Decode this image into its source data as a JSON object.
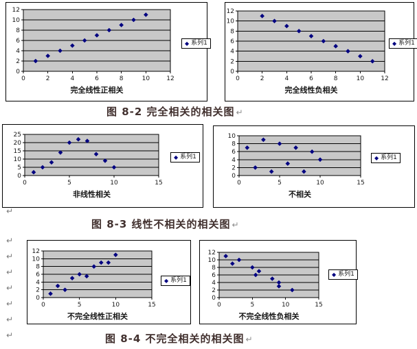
{
  "page": {
    "background": "#ffffff"
  },
  "colors": {
    "marker": "#000080",
    "plot_bg": "#c8c8c8",
    "grid": "#000000",
    "chart_frame": "#000000",
    "caption_text": "#41302e"
  },
  "icons": {
    "diamond_marker": "◆"
  },
  "paragraph_marks": {
    "glyph": "↵",
    "count": 8
  },
  "captions": [
    {
      "text": "图 8-2  完全相关的相关图",
      "mark": "↵"
    },
    {
      "text": "图 8-3  线性不相关的相关图",
      "mark": "↵"
    },
    {
      "text": "图 8-4  不完全相关的相关图",
      "mark": "↵"
    }
  ],
  "chart_data": [
    {
      "type": "scatter",
      "xlabel": "完全线性正相关",
      "legend": "系列1",
      "legend_position": "right",
      "grid": "horizontal",
      "x": [
        1,
        2,
        3,
        4,
        5,
        6,
        7,
        8,
        9,
        10
      ],
      "y": [
        2,
        3,
        4,
        5,
        6,
        7,
        8,
        9,
        10,
        11
      ],
      "xlim": [
        0,
        12
      ],
      "xticks": [
        0,
        2,
        4,
        6,
        8,
        10,
        12
      ],
      "ylim": [
        0,
        12
      ],
      "yticks": [
        0,
        2,
        4,
        6,
        8,
        10,
        12
      ]
    },
    {
      "type": "scatter",
      "xlabel": "完全线性负相关",
      "legend": "系列1",
      "legend_position": "right",
      "grid": "horizontal",
      "x": [
        2,
        3,
        4,
        5,
        6,
        7,
        8,
        9,
        10,
        11
      ],
      "y": [
        11,
        10,
        9,
        8,
        7,
        6,
        5,
        4,
        3,
        2
      ],
      "xlim": [
        0,
        12
      ],
      "xticks": [
        0,
        2,
        4,
        6,
        8,
        10,
        12
      ],
      "ylim": [
        0,
        12
      ],
      "yticks": [
        0,
        2,
        4,
        6,
        8,
        10,
        12
      ]
    },
    {
      "type": "scatter",
      "xlabel": "非线性相关",
      "legend": "系列1",
      "legend_position": "right",
      "grid": "horizontal",
      "x": [
        1,
        2,
        3,
        4,
        5,
        6,
        7,
        8,
        9,
        10
      ],
      "y": [
        2,
        5,
        8,
        14,
        20,
        22,
        21,
        13,
        9,
        5
      ],
      "xlim": [
        0,
        15
      ],
      "xticks": [
        0,
        5,
        10,
        15
      ],
      "ylim": [
        0,
        25
      ],
      "yticks": [
        0,
        5,
        10,
        15,
        20,
        25
      ]
    },
    {
      "type": "scatter",
      "xlabel": "不相关",
      "legend": "系列1",
      "legend_position": "right",
      "grid": "horizontal",
      "x": [
        1,
        2,
        3,
        4,
        5,
        6,
        7,
        8,
        9,
        10
      ],
      "y": [
        7,
        2,
        9,
        1,
        8,
        3,
        7,
        1,
        6,
        4
      ],
      "xlim": [
        0,
        15
      ],
      "xticks": [
        0,
        5,
        10,
        15
      ],
      "ylim": [
        0,
        10
      ],
      "yticks": [
        0,
        2,
        4,
        6,
        8,
        10
      ]
    },
    {
      "type": "scatter",
      "xlabel": "不完全线性正相关",
      "legend": "系列1",
      "legend_position": "right",
      "grid": "horizontal",
      "x": [
        1,
        2,
        3,
        4,
        5,
        6,
        7,
        8,
        9,
        10
      ],
      "y": [
        1,
        3,
        2,
        5,
        6,
        5.5,
        8,
        9,
        9,
        11
      ],
      "xlim": [
        0,
        15
      ],
      "xticks": [
        0,
        5,
        10,
        15
      ],
      "ylim": [
        0,
        12
      ],
      "yticks": [
        0,
        2,
        4,
        6,
        8,
        10,
        12
      ]
    },
    {
      "type": "scatter",
      "xlabel": "不完全线性负相关",
      "legend": "系列1",
      "legend_position": "right",
      "grid": "horizontal",
      "x": [
        1,
        2,
        3,
        5,
        5.5,
        6,
        8,
        9,
        9,
        11
      ],
      "y": [
        11,
        9,
        10,
        8,
        6,
        7,
        5,
        4,
        3,
        2
      ],
      "xlim": [
        0,
        15
      ],
      "xticks": [
        0,
        5,
        10,
        15
      ],
      "ylim": [
        0,
        12
      ],
      "yticks": [
        0,
        2,
        4,
        6,
        8,
        10,
        12
      ]
    }
  ]
}
